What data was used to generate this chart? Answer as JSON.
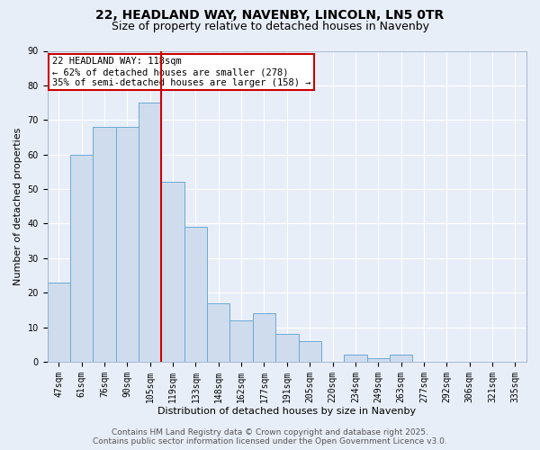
{
  "title1": "22, HEADLAND WAY, NAVENBY, LINCOLN, LN5 0TR",
  "title2": "Size of property relative to detached houses in Navenby",
  "xlabel": "Distribution of detached houses by size in Navenby",
  "ylabel": "Number of detached properties",
  "categories": [
    "47sqm",
    "61sqm",
    "76sqm",
    "90sqm",
    "105sqm",
    "119sqm",
    "133sqm",
    "148sqm",
    "162sqm",
    "177sqm",
    "191sqm",
    "205sqm",
    "220sqm",
    "234sqm",
    "249sqm",
    "263sqm",
    "277sqm",
    "292sqm",
    "306sqm",
    "321sqm",
    "335sqm"
  ],
  "values": [
    23,
    60,
    68,
    68,
    75,
    52,
    39,
    17,
    12,
    14,
    8,
    6,
    0,
    2,
    1,
    2,
    0,
    0,
    0,
    0,
    0
  ],
  "bar_color": "#cfdcee",
  "bar_edge_color": "#6aaad4",
  "red_line_index": 5,
  "red_line_color": "#cc0000",
  "annotation_text": "22 HEADLAND WAY: 118sqm\n← 62% of detached houses are smaller (278)\n35% of semi-detached houses are larger (158) →",
  "annotation_box_color": "#ffffff",
  "annotation_box_edge": "#cc0000",
  "ylim": [
    0,
    90
  ],
  "yticks": [
    0,
    10,
    20,
    30,
    40,
    50,
    60,
    70,
    80,
    90
  ],
  "footer1": "Contains HM Land Registry data © Crown copyright and database right 2025.",
  "footer2": "Contains public sector information licensed under the Open Government Licence v3.0.",
  "bg_color": "#e8eef8",
  "grid_color": "#ffffff",
  "title1_fontsize": 10,
  "title2_fontsize": 9,
  "axis_label_fontsize": 8,
  "tick_fontsize": 7,
  "annotation_fontsize": 7.5,
  "footer_fontsize": 6.5
}
